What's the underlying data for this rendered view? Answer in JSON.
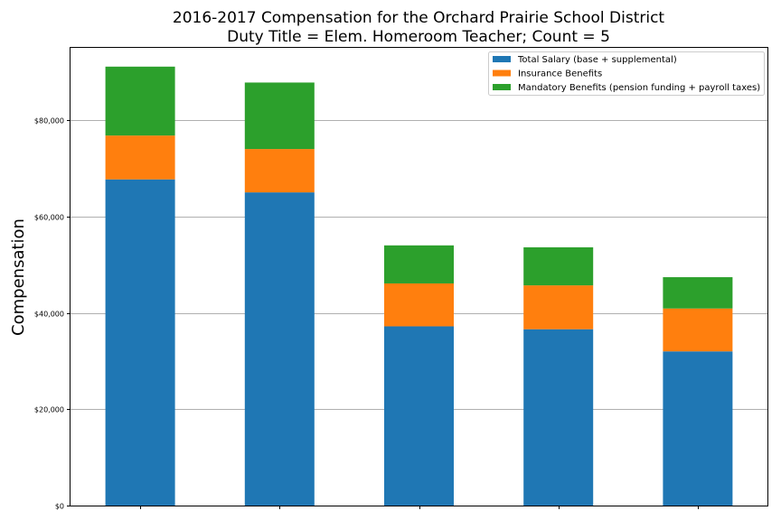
{
  "chart_data": {
    "type": "bar",
    "stacked": true,
    "title": "2016-2017 Compensation for the Orchard Prairie School District",
    "subtitle": "Duty Title = Elem. Homeroom Teacher; Count = 5",
    "xlabel": "",
    "ylabel": "Compensation",
    "categories": [
      "",
      "",
      "",
      "",
      ""
    ],
    "ylim": [
      0,
      95000
    ],
    "yticks": [
      0,
      20000,
      40000,
      60000,
      80000
    ],
    "ytick_labels": [
      "$0",
      "$20,000",
      "$40,000",
      "$60,000",
      "$80,000"
    ],
    "grid": "horizontal",
    "legend_position": "top-right",
    "series": [
      {
        "name": "Total Salary (base + supplemental)",
        "color": "#1f77b4",
        "values": [
          67700,
          65000,
          37200,
          36600,
          32000
        ]
      },
      {
        "name": "Insurance Benefits",
        "color": "#ff7f0e",
        "values": [
          9100,
          9000,
          8900,
          9100,
          8900
        ]
      },
      {
        "name": "Mandatory Benefits (pension funding + payroll taxes)",
        "color": "#2ca02c",
        "values": [
          14300,
          13800,
          7900,
          7900,
          6500
        ]
      }
    ]
  }
}
